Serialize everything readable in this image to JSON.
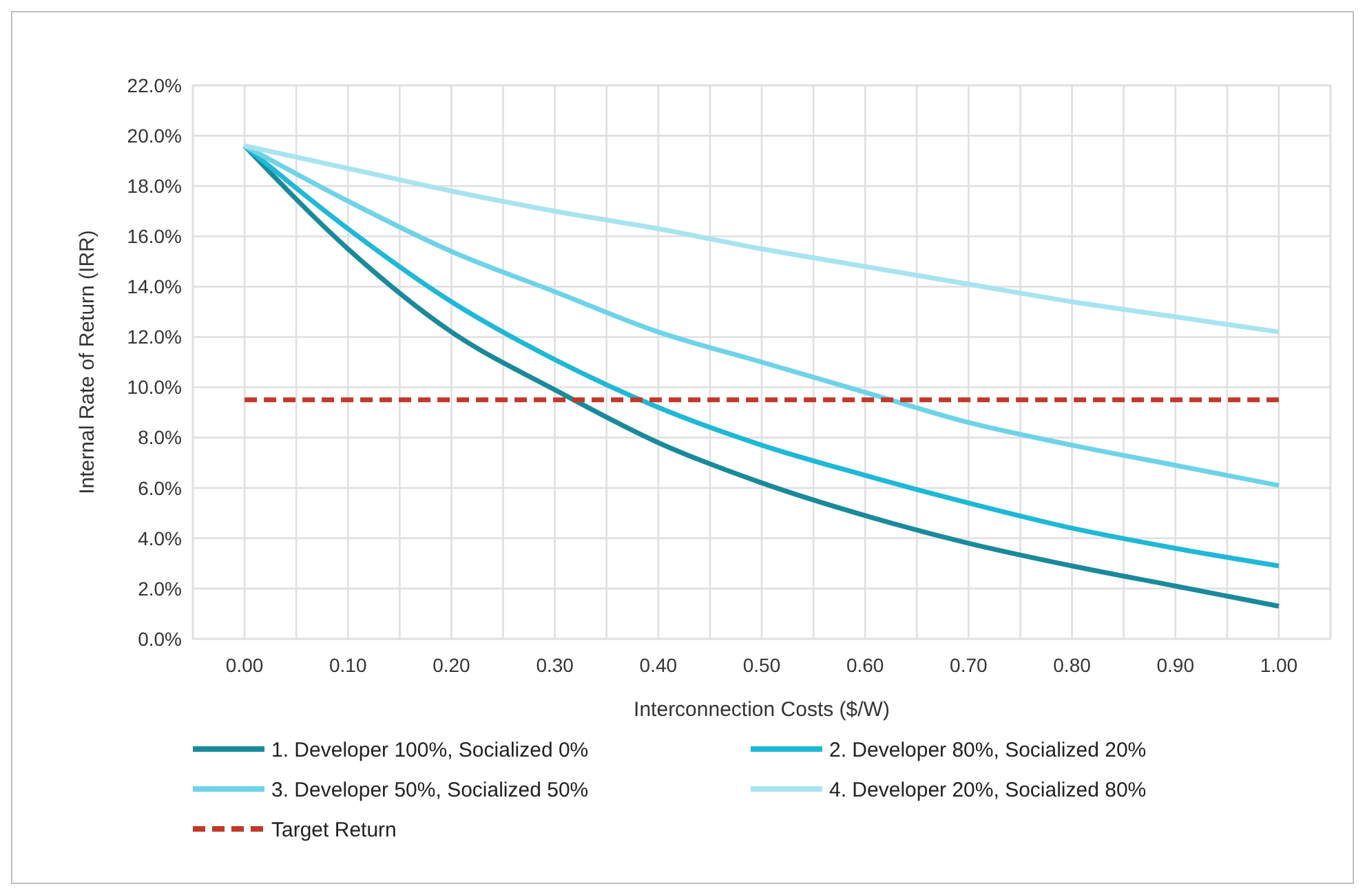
{
  "chart_data": {
    "type": "line",
    "xlabel": "Interconnection  Costs ($/W)",
    "ylabel": "Internal  Rate of Return  (IRR)",
    "x": [
      0,
      0.1,
      0.2,
      0.3,
      0.4,
      0.5,
      0.6,
      0.7,
      0.8,
      0.9,
      1.0
    ],
    "series": [
      {
        "name": "1. Developer 100%, Socialized 0%",
        "color": "#1a8a9a",
        "values": [
          19.6,
          15.5,
          12.2,
          9.9,
          7.8,
          6.2,
          4.9,
          3.8,
          2.9,
          2.1,
          1.3
        ]
      },
      {
        "name": "2. Developer 80%, Socialized 20%",
        "color": "#1fb8d6",
        "values": [
          19.6,
          16.3,
          13.4,
          11.1,
          9.2,
          7.7,
          6.5,
          5.4,
          4.4,
          3.6,
          2.9
        ]
      },
      {
        "name": "3. Developer 50%, Socialized 50%",
        "color": "#6fd3e8",
        "values": [
          19.6,
          17.4,
          15.4,
          13.8,
          12.2,
          11.0,
          9.8,
          8.6,
          7.7,
          6.9,
          6.1
        ]
      },
      {
        "name": "4. Developer 20%, Socialized 80%",
        "color": "#a8e4f0",
        "values": [
          19.6,
          18.7,
          17.8,
          17.0,
          16.3,
          15.5,
          14.8,
          14.1,
          13.4,
          12.8,
          12.2
        ]
      },
      {
        "name": "Target Return",
        "color": "#c0392b",
        "line_style": "dashed",
        "values": [
          9.5,
          9.5,
          9.5,
          9.5,
          9.5,
          9.5,
          9.5,
          9.5,
          9.5,
          9.5,
          9.5
        ]
      }
    ],
    "xlim": [
      -0.05,
      1.05
    ],
    "xticks": [
      {
        "value": -0.05,
        "label": null
      },
      {
        "value": 0,
        "label": "0.00"
      },
      {
        "value": 0.05,
        "label": null
      },
      {
        "value": 0.1,
        "label": "0.10"
      },
      {
        "value": 0.15,
        "label": null
      },
      {
        "value": 0.2,
        "label": "0.20"
      },
      {
        "value": 0.25,
        "label": null
      },
      {
        "value": 0.3,
        "label": "0.30"
      },
      {
        "value": 0.35,
        "label": null
      },
      {
        "value": 0.4,
        "label": "0.40"
      },
      {
        "value": 0.45,
        "label": null
      },
      {
        "value": 0.5,
        "label": "0.50"
      },
      {
        "value": 0.55,
        "label": null
      },
      {
        "value": 0.6,
        "label": "0.60"
      },
      {
        "value": 0.65,
        "label": null
      },
      {
        "value": 0.7,
        "label": "0.70"
      },
      {
        "value": 0.75,
        "label": null
      },
      {
        "value": 0.8,
        "label": "0.80"
      },
      {
        "value": 0.85,
        "label": null
      },
      {
        "value": 0.9,
        "label": "0.90"
      },
      {
        "value": 0.95,
        "label": null
      },
      {
        "value": 1.0,
        "label": "1.00"
      },
      {
        "value": 1.05,
        "label": null
      }
    ],
    "ylim": [
      0,
      22
    ],
    "yticks": [
      {
        "value": 0,
        "label": "0.0%"
      },
      {
        "value": 2,
        "label": "2.0%"
      },
      {
        "value": 4,
        "label": "4.0%"
      },
      {
        "value": 6,
        "label": "6.0%"
      },
      {
        "value": 8,
        "label": "8.0%"
      },
      {
        "value": 10,
        "label": "10.0%"
      },
      {
        "value": 12,
        "label": "12.0%"
      },
      {
        "value": 14,
        "label": "14.0%"
      },
      {
        "value": 16,
        "label": "16.0%"
      },
      {
        "value": 18,
        "label": "18.0%"
      },
      {
        "value": 20,
        "label": "20.0%"
      },
      {
        "value": 22,
        "label": "22.0%"
      }
    ],
    "grid": true,
    "legend": "bottom",
    "marker": "none"
  }
}
